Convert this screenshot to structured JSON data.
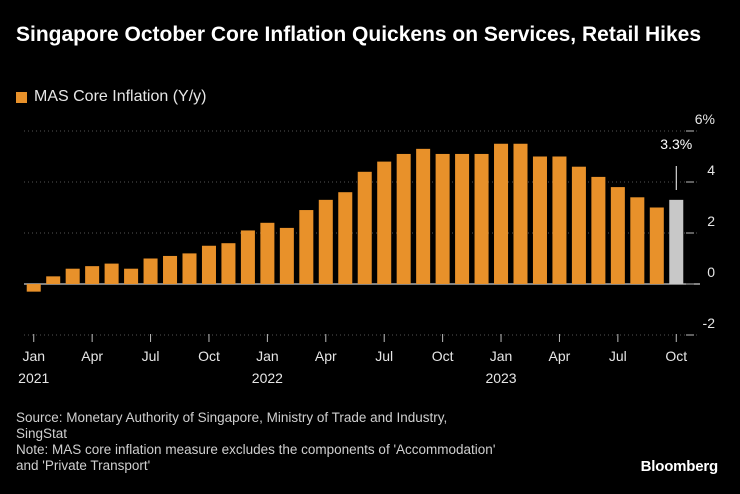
{
  "colors": {
    "bar": "#e8912a",
    "highlight": "#c8c8c8",
    "background": "#000000",
    "grid": "#555555",
    "axis": "#ffffff"
  },
  "footer": {
    "source": "Source: Monetary Authority of Singapore, Ministry of Trade and Industry,\nSingStat",
    "note": "Note: MAS core inflation measure excludes the components of 'Accommodation'\nand 'Private Transport'"
  },
  "brand": "Bloomberg",
  "chart_data": {
    "type": "bar",
    "title": "Singapore October Core Inflation Quickens on Services, Retail Hikes",
    "legend": [
      "MAS Core Inflation (Y/y)"
    ],
    "annotation": "3.3%",
    "ylim": [
      -2,
      6
    ],
    "yticks": [
      6,
      4,
      2,
      0,
      -2
    ],
    "ytick_labels": [
      "6%",
      "4",
      "2",
      "0",
      "-2"
    ],
    "xlabels": [
      {
        "index": 0,
        "month": "Jan",
        "year": "2021"
      },
      {
        "index": 3,
        "month": "Apr",
        "year": ""
      },
      {
        "index": 6,
        "month": "Jul",
        "year": ""
      },
      {
        "index": 9,
        "month": "Oct",
        "year": ""
      },
      {
        "index": 12,
        "month": "Jan",
        "year": "2022"
      },
      {
        "index": 15,
        "month": "Apr",
        "year": ""
      },
      {
        "index": 18,
        "month": "Jul",
        "year": ""
      },
      {
        "index": 21,
        "month": "Oct",
        "year": ""
      },
      {
        "index": 24,
        "month": "Jan",
        "year": "2023"
      },
      {
        "index": 27,
        "month": "Apr",
        "year": ""
      },
      {
        "index": 30,
        "month": "Jul",
        "year": ""
      },
      {
        "index": 33,
        "month": "Oct",
        "year": ""
      }
    ],
    "highlight_index": 33,
    "values": [
      -0.3,
      0.3,
      0.6,
      0.7,
      0.8,
      0.6,
      1.0,
      1.1,
      1.2,
      1.5,
      1.6,
      2.1,
      2.4,
      2.2,
      2.9,
      3.3,
      3.6,
      4.4,
      4.8,
      5.1,
      5.3,
      5.1,
      5.1,
      5.1,
      5.5,
      5.5,
      5.0,
      5.0,
      4.6,
      4.2,
      3.8,
      3.4,
      3.0,
      3.3
    ]
  }
}
